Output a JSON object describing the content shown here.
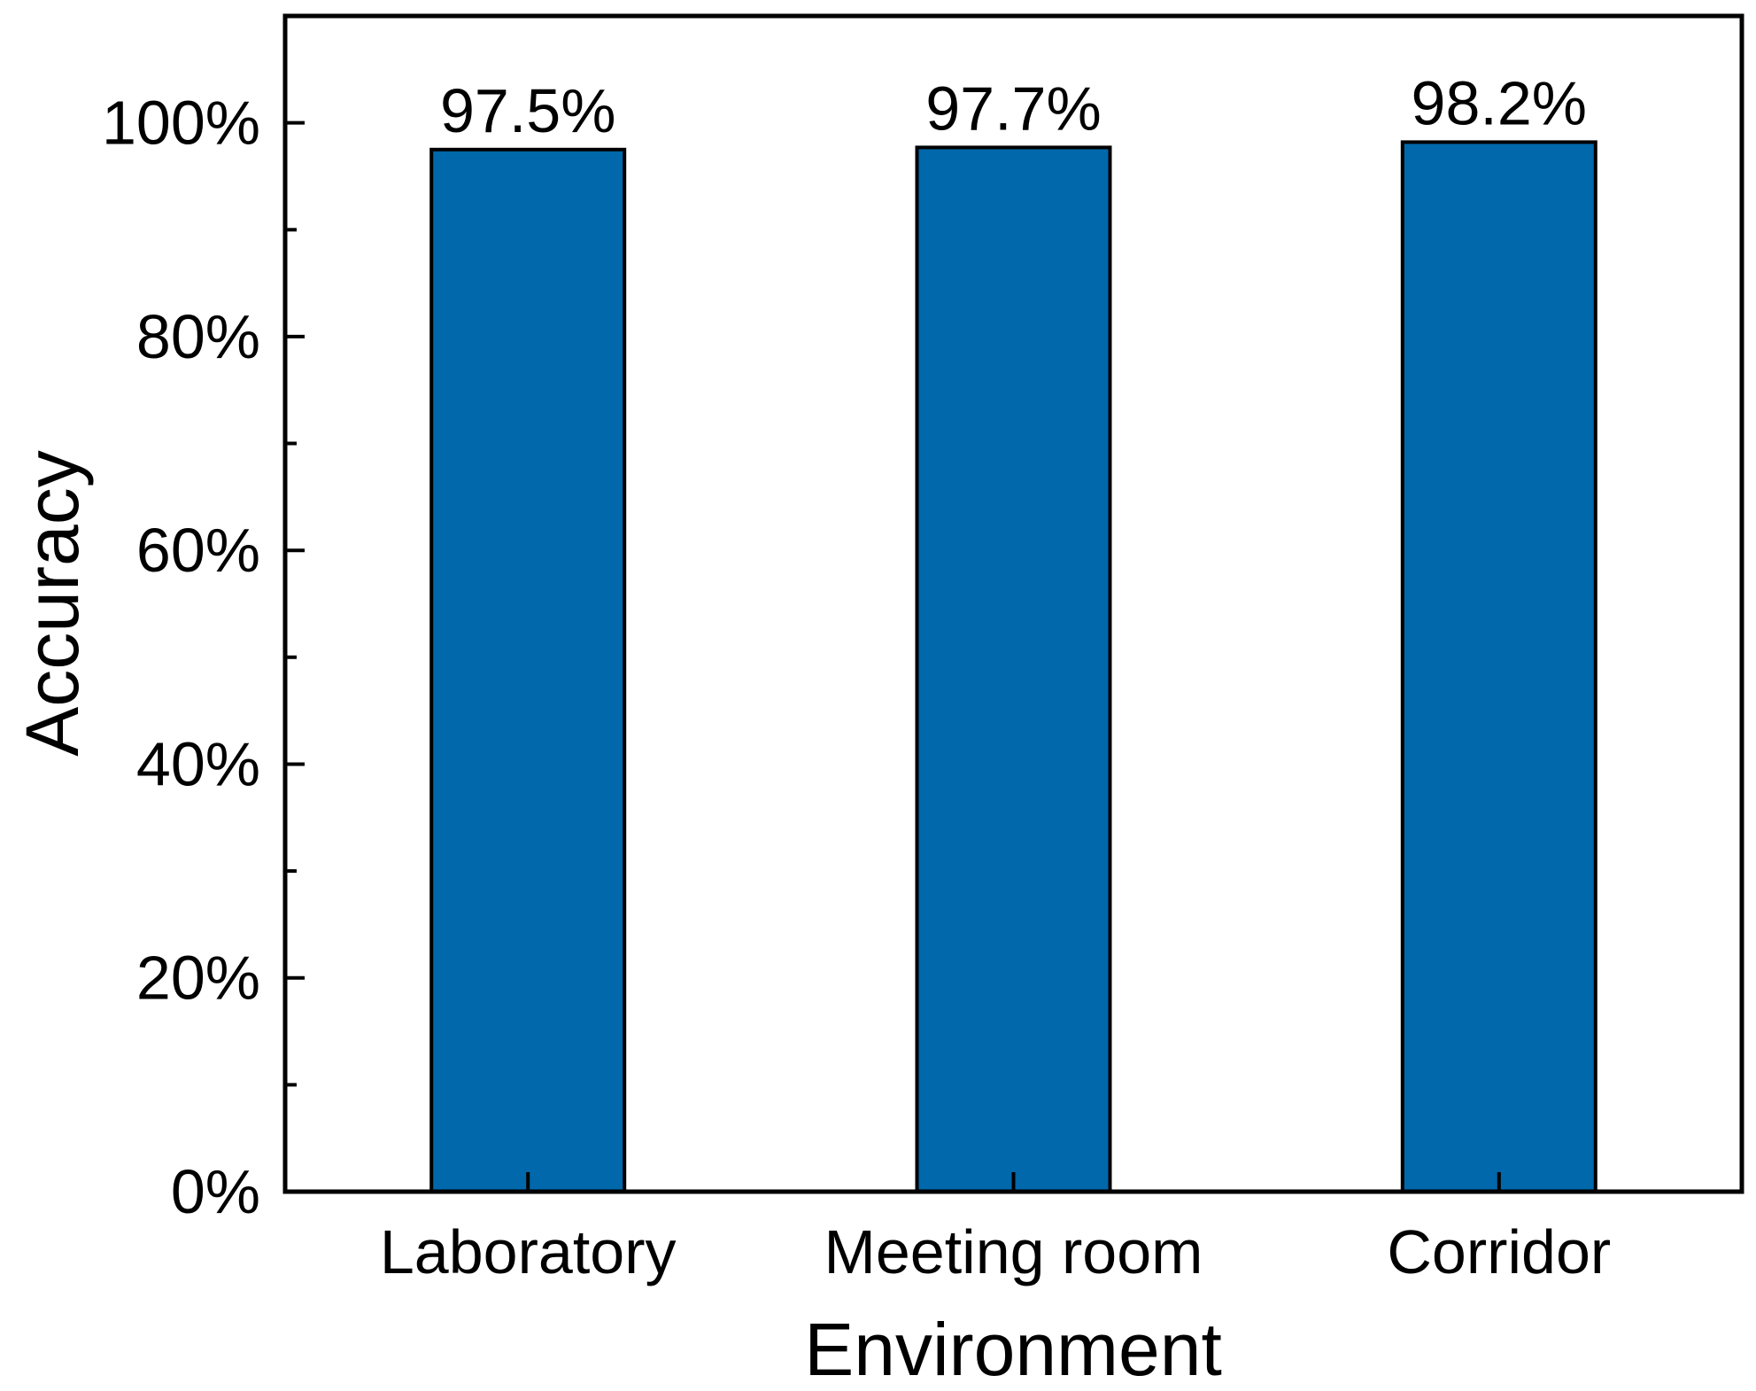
{
  "chart_data": {
    "type": "bar",
    "title": "",
    "xlabel": "Environment",
    "ylabel": "Accuracy",
    "categories": [
      "Laboratory",
      "Meeting room",
      "Corridor"
    ],
    "values": [
      97.5,
      97.7,
      98.2
    ],
    "data_labels": [
      "97.5%",
      "97.7%",
      "98.2%"
    ],
    "ylim": [
      0,
      110
    ],
    "yticks": [
      0,
      20,
      40,
      60,
      80,
      100
    ],
    "ytick_labels": [
      "0%",
      "20%",
      "40%",
      "60%",
      "80%",
      "100%"
    ],
    "minor_yticks": [
      10,
      30,
      50,
      70,
      90
    ],
    "grid": false,
    "legend": "none",
    "colors": {
      "bar_fill": "#0068AB",
      "bar_stroke": "#000000",
      "axis": "#000000",
      "background": "#FFFFFF"
    }
  }
}
